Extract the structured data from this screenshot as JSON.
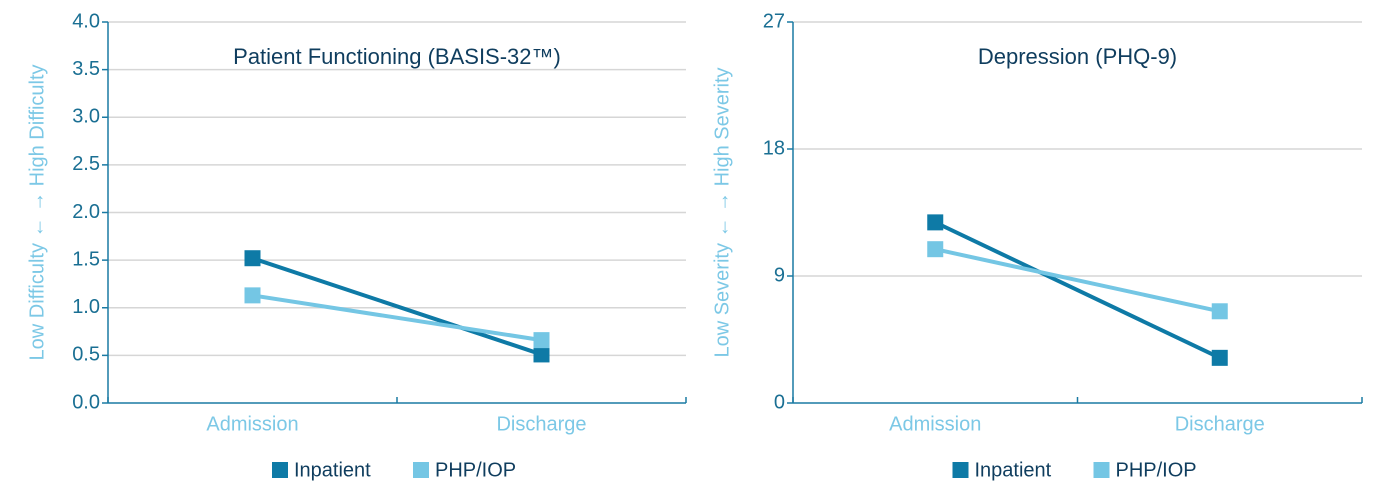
{
  "chart_data": [
    {
      "type": "line",
      "title": "Patient Functioning (BASIS-32™)",
      "ylabel": "Low Difficulty ← → High Difficulty",
      "categories": [
        "Admission",
        "Discharge"
      ],
      "series": [
        {
          "name": "Inpatient",
          "color": "#0e7aa6",
          "values": [
            1.52,
            0.51
          ]
        },
        {
          "name": "PHP/IOP",
          "color": "#74c6e4",
          "values": [
            1.13,
            0.66
          ]
        }
      ],
      "ylim": [
        0,
        4
      ],
      "yticks": [
        {
          "value": 0,
          "label": "0.0"
        },
        0.5,
        {
          "value": 1,
          "label": "1.0"
        },
        1.5,
        {
          "value": 2,
          "label": "2.0"
        },
        2.5,
        {
          "value": 3,
          "label": "3.0"
        },
        3.5,
        {
          "value": 4,
          "label": "4.0"
        }
      ],
      "grid": true,
      "legend": "bottom"
    },
    {
      "type": "line",
      "title": "Depression (PHQ-9)",
      "ylabel": "Low Severity ← → High Severity",
      "categories": [
        "Admission",
        "Discharge"
      ],
      "series": [
        {
          "name": "Inpatient",
          "color": "#0e7aa6",
          "values": [
            12.8,
            3.2
          ]
        },
        {
          "name": "PHP/IOP",
          "color": "#74c6e4",
          "values": [
            10.9,
            6.5
          ]
        }
      ],
      "ylim": [
        0,
        27
      ],
      "yticks": [
        0,
        9,
        18,
        27
      ],
      "grid": true,
      "legend": "bottom"
    }
  ]
}
